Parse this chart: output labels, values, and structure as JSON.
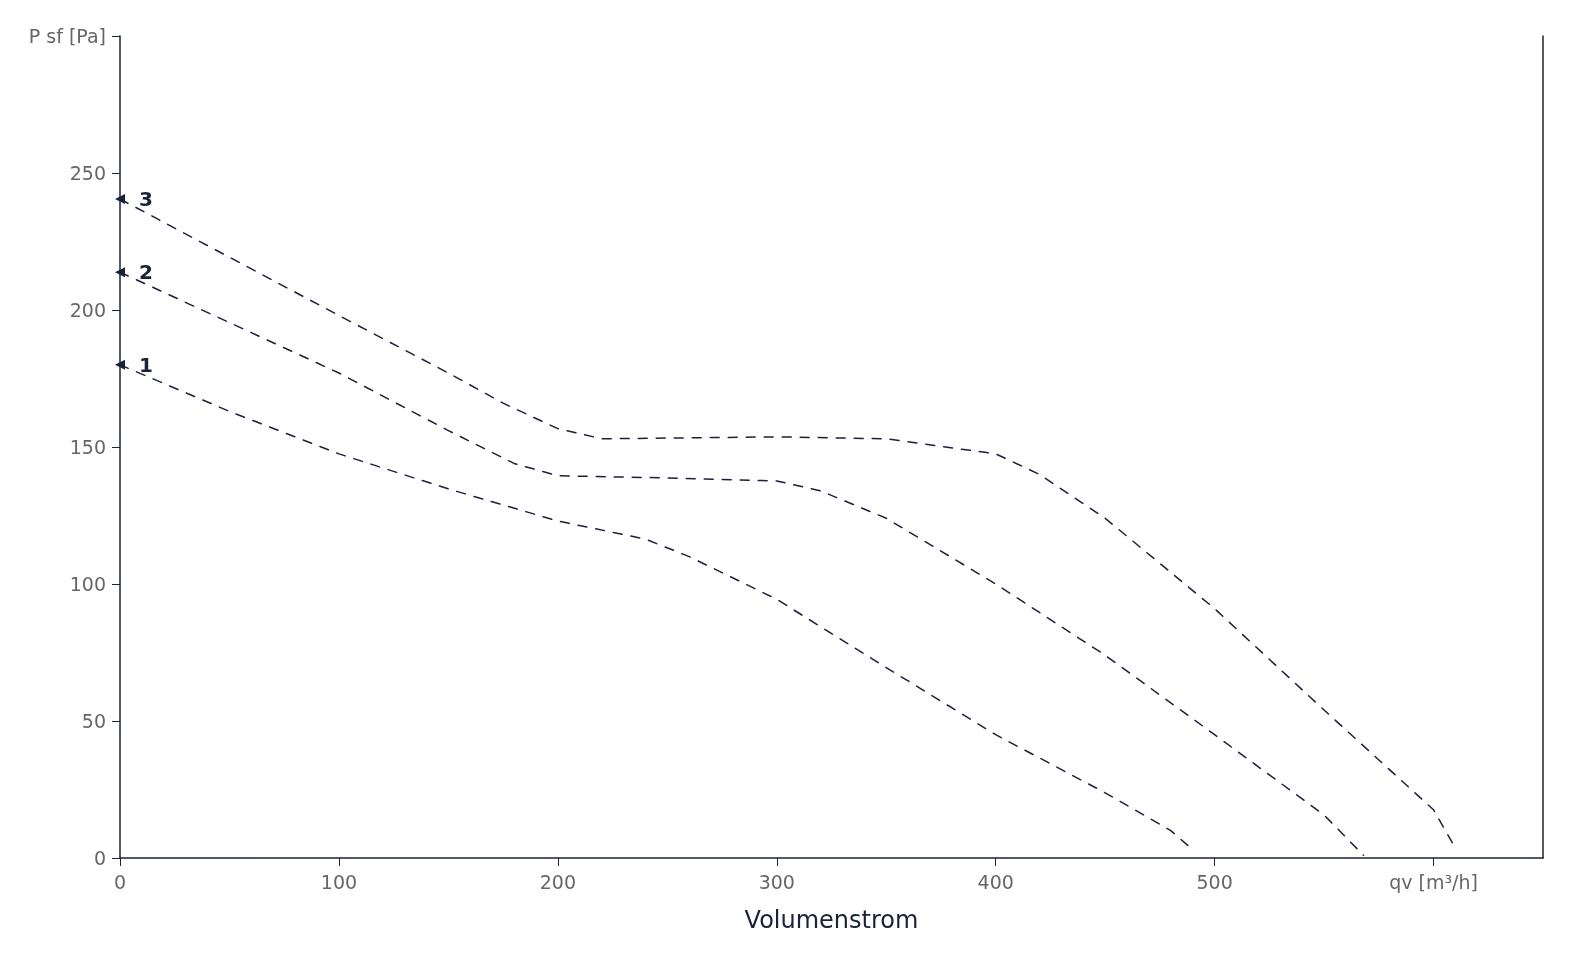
{
  "chart_data": {
    "type": "line",
    "xlabel": "Volumenstrom",
    "xlim": [
      0,
      650
    ],
    "xticks": [
      0,
      100,
      200,
      300,
      400,
      500,
      {
        "value": 600,
        "label": "qv [m³/h]"
      }
    ],
    "ylim": [
      0,
      300
    ],
    "yticks": [
      0,
      50,
      100,
      150,
      200,
      250,
      {
        "value": 300,
        "label": "P sf [Pa]"
      }
    ],
    "grid": false,
    "legend": false,
    "line_style": "dashed",
    "marker": "none",
    "series": [
      {
        "name": "1",
        "color": "#1a2238",
        "x": [
          0,
          50,
          100,
          150,
          200,
          240,
          260,
          300,
          350,
          400,
          450,
          480,
          490
        ],
        "values": [
          180,
          163,
          147.5,
          134.7,
          123,
          116.4,
          110,
          94.4,
          69.5,
          45,
          23.8,
          10,
          3
        ]
      },
      {
        "name": "2",
        "color": "#1a2238",
        "x": [
          0,
          100,
          150,
          180,
          200,
          250,
          300,
          320,
          350,
          400,
          450,
          500,
          550,
          568
        ],
        "values": [
          213.8,
          177,
          156,
          144,
          139.5,
          138.7,
          137.6,
          134,
          124,
          100,
          74,
          45,
          15.7,
          1
        ]
      },
      {
        "name": "3",
        "color": "#1a2238",
        "x": [
          0,
          100,
          150,
          175,
          200,
          220,
          300,
          350,
          400,
          420,
          450,
          500,
          550,
          600,
          609
        ],
        "values": [
          240.5,
          198,
          177,
          166,
          156.7,
          153,
          153.7,
          153,
          147.5,
          140,
          124,
          91,
          54,
          17.6,
          5
        ]
      }
    ]
  }
}
